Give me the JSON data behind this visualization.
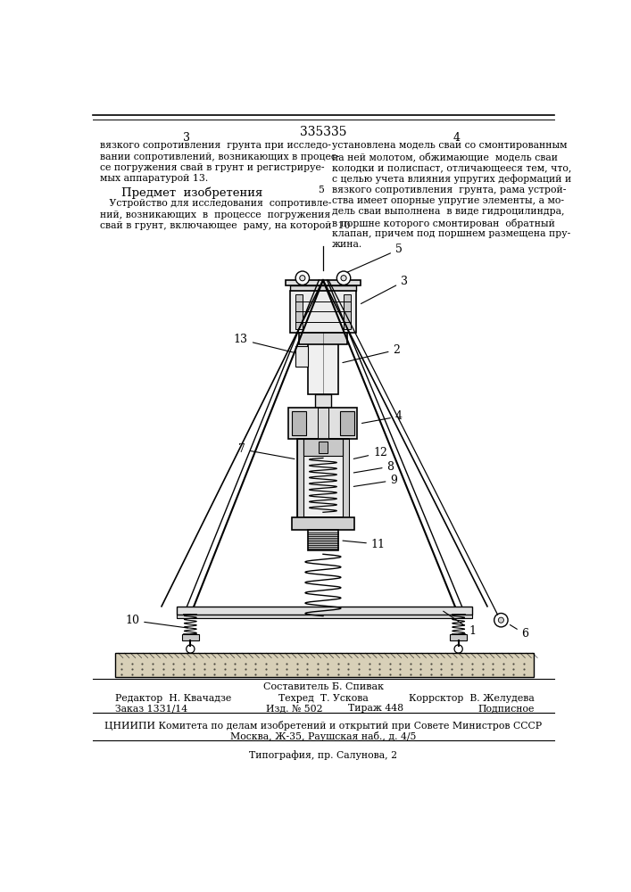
{
  "page_number_center": "335335",
  "page_num_left": "3",
  "page_num_right": "4",
  "bg_color": "#ffffff",
  "text_color": "#000000",
  "left_col_lines": [
    "вязкого сопротивления  грунта при исследо-",
    "вании сопротивлений, возникающих в процес-",
    "се погружения свай в грунт и регистрируе-",
    "мых аппаратурой 13."
  ],
  "predmet_header": "Предмет  изобретения",
  "predmet_lines": [
    "   Устройство для исследования  сопротивле-",
    "ний, возникающих  в  процессе  погружения",
    "свай в грунт, включающее  раму, на которой  10"
  ],
  "right_col_lines": [
    "установлена модель сваи со смонтированным",
    "на ней молотом, обжимающие  модель сваи",
    "колодки и полиспаст, отличающееся тем, что,",
    "с целью учета влияния упругих деформаций и",
    "вязкого сопротивления  грунта, рама устрой-",
    "ства имеет опорные упругие элементы, а мо-",
    "дель сваи выполнена  в виде гидроцилиндра,",
    "в поршне которого смонтирован  обратный",
    "клапан, причем под поршнем размещена пру-",
    "жина."
  ],
  "right_col_line5_num": "5",
  "sestavitel": "Составитель Б. Спивак",
  "footer_ed": "Редактор  Н. Квачадзе",
  "footer_tech": "Техред  Т. Ускова",
  "footer_corr": "Коррсктор  В. Желудева",
  "footer_zakaz": "Заказ 1331/14",
  "footer_izd": "Изд. № 502",
  "footer_tirazh": "Тираж 448",
  "footer_podp": "Подписное",
  "footer_cniip": "ЦНИИПИ Комитета по делам изобретений и открытий при Совете Министров СССР",
  "footer_addr": "Москва, Ж-35, Раушская наб., д. 4/5",
  "footer_typ": "Типография, пр. Салунова, 2"
}
